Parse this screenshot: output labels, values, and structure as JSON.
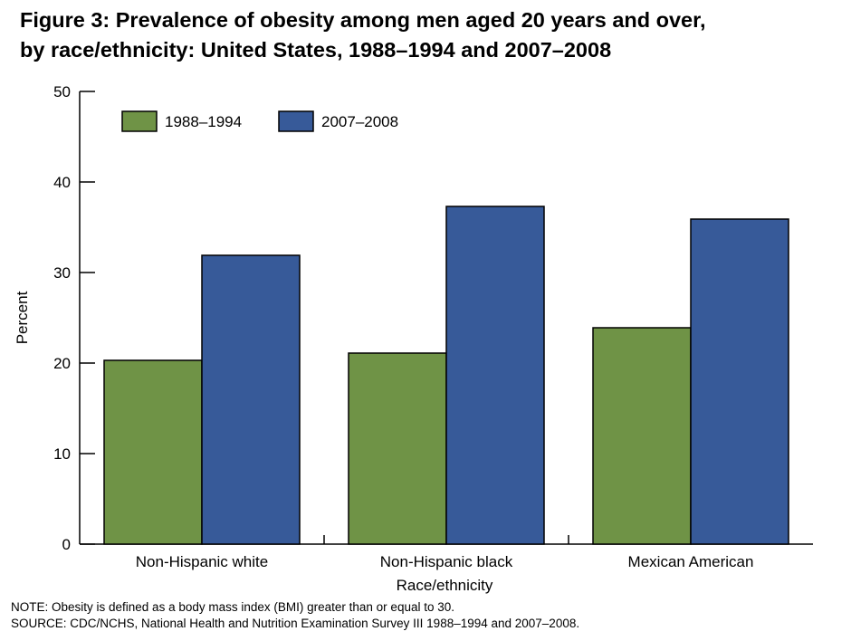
{
  "chart_data": {
    "type": "bar",
    "title": "Figure 3: Prevalence of obesity among men aged 20 years and over,\nby race/ethnicity: United States, 1988–1994 and 2007–2008",
    "xlabel": "Race/ethnicity",
    "ylabel": "Percent",
    "ylim": [
      0,
      50
    ],
    "yticks": [
      "0",
      "10",
      "20",
      "30",
      "40",
      "50"
    ],
    "categories": [
      "Non-Hispanic white",
      "Non-Hispanic black",
      "Mexican American"
    ],
    "series": [
      {
        "name": "1988–1994",
        "color": "#6f9346",
        "values": [
          20.3,
          21.1,
          23.9
        ]
      },
      {
        "name": "2007–2008",
        "color": "#375a99",
        "values": [
          31.9,
          37.3,
          35.9
        ]
      }
    ],
    "grid": false,
    "legend_position": "top-left"
  },
  "notes": {
    "note": "NOTE: Obesity is defined as a body mass index (BMI) greater than or equal to 30.",
    "source": "SOURCE: CDC/NCHS, National Health and Nutrition Examination Survey III 1988–1994 and 2007–2008."
  }
}
